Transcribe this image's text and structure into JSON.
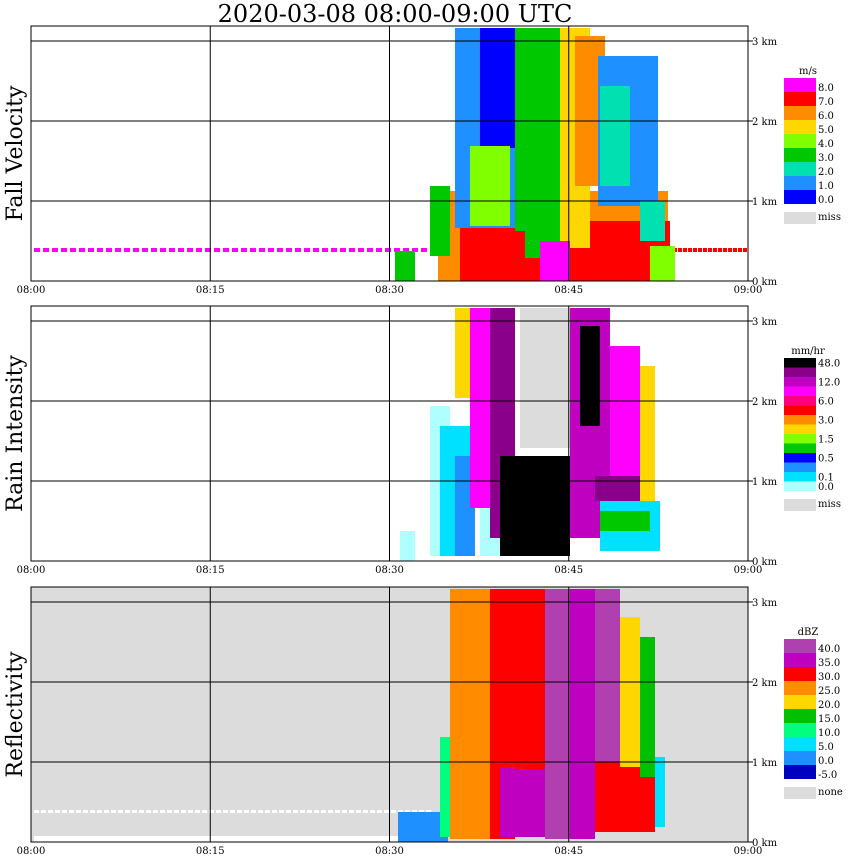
{
  "title": "2020-03-08   08:00-09:00 UTC",
  "colors": {
    "missing_gray": "#dcdcdc",
    "grid_line": "#000000"
  },
  "chart_data": [
    {
      "type": "heatmap",
      "ylabel": "Fall Velocity",
      "x_ticks": [
        "08:00",
        "08:15",
        "08:30",
        "08:45",
        "09:00"
      ],
      "y_ticks": [
        "0 km",
        "1 km",
        "2 km",
        "3 km"
      ],
      "xlim": [
        "08:00",
        "09:00"
      ],
      "ylim_km": [
        0,
        3.2
      ],
      "background": "#ffffff",
      "legend": {
        "unit": "m/s",
        "levels": [
          {
            "label": "8.0",
            "color": "#ff00ff"
          },
          {
            "label": "7.0",
            "color": "#ff0000"
          },
          {
            "label": "6.0",
            "color": "#ff8c00"
          },
          {
            "label": "5.0",
            "color": "#ffd700"
          },
          {
            "label": "4.0",
            "color": "#7fff00"
          },
          {
            "label": "3.0",
            "color": "#00c800"
          },
          {
            "label": "2.0",
            "color": "#00e0b0"
          },
          {
            "label": "1.0",
            "color": "#1e90ff"
          },
          {
            "label": "0.0",
            "color": "#0000ff"
          }
        ],
        "missing": {
          "label": "miss",
          "color": "#dcdcdc"
        }
      }
    },
    {
      "type": "heatmap",
      "ylabel": "Rain Intensity",
      "x_ticks": [
        "08:00",
        "08:15",
        "08:30",
        "08:45",
        "09:00"
      ],
      "y_ticks": [
        "0 km",
        "1 km",
        "2 km",
        "3 km"
      ],
      "xlim": [
        "08:00",
        "09:00"
      ],
      "ylim_km": [
        0,
        3.2
      ],
      "background": "#ffffff",
      "legend": {
        "unit": "mm/hr",
        "levels": [
          {
            "label": "48.0",
            "color": "#000000"
          },
          {
            "label": "",
            "color": "#8b008b"
          },
          {
            "label": "12.0",
            "color": "#c000c0"
          },
          {
            "label": "",
            "color": "#ff00ff"
          },
          {
            "label": "6.0",
            "color": "#ff0080"
          },
          {
            "label": "",
            "color": "#ff0000"
          },
          {
            "label": "3.0",
            "color": "#ff8c00"
          },
          {
            "label": "",
            "color": "#ffd700"
          },
          {
            "label": "1.5",
            "color": "#7fff00"
          },
          {
            "label": "",
            "color": "#00c800"
          },
          {
            "label": "0.5",
            "color": "#0000ff"
          },
          {
            "label": "",
            "color": "#1e90ff"
          },
          {
            "label": "0.1",
            "color": "#00e0ff"
          },
          {
            "label": "0.0",
            "color": "#b0ffff"
          }
        ],
        "missing": {
          "label": "miss",
          "color": "#dcdcdc"
        }
      }
    },
    {
      "type": "heatmap",
      "ylabel": "Reflectivity",
      "x_ticks": [
        "08:00",
        "08:15",
        "08:30",
        "08:45",
        "09:00"
      ],
      "y_ticks": [
        "0 km",
        "1 km",
        "2 km",
        "3 km"
      ],
      "xlim": [
        "08:00",
        "09:00"
      ],
      "ylim_km": [
        0,
        3.2
      ],
      "background": "#dcdcdc",
      "legend": {
        "unit": "dBZ",
        "levels": [
          {
            "label": "40.0",
            "color": "#b040b0"
          },
          {
            "label": "35.0",
            "color": "#c000c0"
          },
          {
            "label": "30.0",
            "color": "#ff0000"
          },
          {
            "label": "25.0",
            "color": "#ff8c00"
          },
          {
            "label": "20.0",
            "color": "#ffd700"
          },
          {
            "label": "15.0",
            "color": "#00c000"
          },
          {
            "label": "10.0",
            "color": "#00ff7f"
          },
          {
            "label": "5.0",
            "color": "#00e0ff"
          },
          {
            "label": "0.0",
            "color": "#1e90ff"
          },
          {
            "label": "-5.0",
            "color": "#0000c0"
          }
        ],
        "missing": {
          "label": "none",
          "color": "#dcdcdc"
        }
      }
    }
  ]
}
